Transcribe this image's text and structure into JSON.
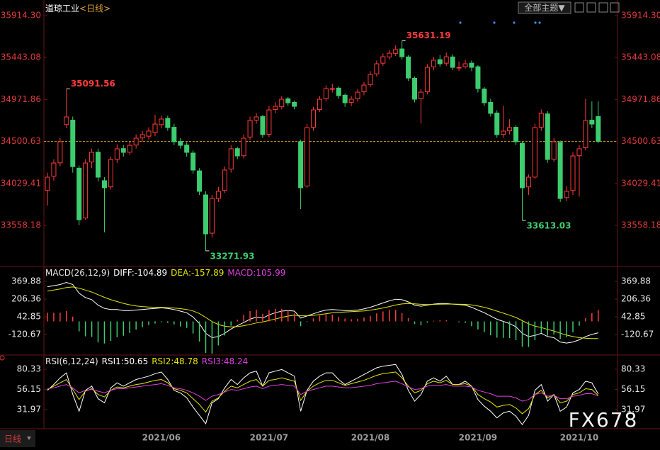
{
  "ui": {
    "toolbar": "全部主题▼",
    "tab": "日线",
    "watermark": "FX678"
  },
  "chart_data": [
    {
      "type": "candlestick",
      "title": "道琼工业",
      "subtitle": "<日线>",
      "up_color": "#ff3b3b",
      "down_color": "#3dcc6e",
      "last_line_color": "#d4a017",
      "ylim": [
        33104,
        36026
      ],
      "yticks": [
        {
          "value": 35914.3,
          "label": "35914.30"
        },
        35443.08,
        34971.86,
        34500.63,
        34029.41,
        33558.18
      ],
      "categories": [
        null,
        null,
        null,
        null,
        null,
        null,
        null,
        null,
        null,
        null,
        null,
        null,
        null,
        null,
        null,
        null,
        null,
        null,
        "2021/06",
        null,
        null,
        null,
        null,
        null,
        null,
        null,
        null,
        null,
        null,
        null,
        null,
        null,
        null,
        null,
        null,
        "2021/07",
        null,
        null,
        null,
        null,
        null,
        null,
        null,
        null,
        null,
        null,
        null,
        null,
        null,
        null,
        null,
        "2021/08",
        null,
        null,
        null,
        null,
        null,
        null,
        null,
        null,
        null,
        null,
        null,
        null,
        null,
        null,
        null,
        null,
        "2021/09",
        null,
        null,
        null,
        null,
        null,
        null,
        null,
        null,
        null,
        null,
        null,
        null,
        null,
        null,
        null,
        "2021/10",
        null,
        null,
        null
      ],
      "candles": [
        [
          33950,
          34150,
          33781,
          34099
        ],
        [
          34110,
          34300,
          34060,
          34258
        ],
        [
          34260,
          34540,
          34220,
          34497
        ],
        [
          34690,
          35091.56,
          34650,
          34776
        ],
        [
          34740,
          34780,
          34150,
          34218
        ],
        [
          34200,
          34230,
          33560,
          33621
        ],
        [
          33640,
          34300,
          33620,
          34258
        ],
        [
          34270,
          34420,
          34200,
          34378
        ],
        [
          34380,
          34420,
          34050,
          34099
        ],
        [
          34060,
          34100,
          33480,
          33980
        ],
        [
          33990,
          34330,
          33960,
          34298
        ],
        [
          34300,
          34470,
          34260,
          34418
        ],
        [
          34420,
          34460,
          34330,
          34378
        ],
        [
          34380,
          34500,
          34350,
          34457
        ],
        [
          34460,
          34580,
          34420,
          34537
        ],
        [
          34540,
          34620,
          34500,
          34577
        ],
        [
          34560,
          34660,
          34520,
          34617
        ],
        [
          34600,
          34800,
          34560,
          34696
        ],
        [
          34690,
          34790,
          34650,
          34752
        ],
        [
          34760,
          34790,
          34620,
          34656
        ],
        [
          34660,
          34700,
          34460,
          34497
        ],
        [
          34500,
          34540,
          34420,
          34457
        ],
        [
          34460,
          34490,
          34330,
          34378
        ],
        [
          34370,
          34400,
          34140,
          34179
        ],
        [
          34170,
          34200,
          33900,
          33940
        ],
        [
          33900,
          33940,
          33271.93,
          33462
        ],
        [
          33470,
          33900,
          33420,
          33860
        ],
        [
          33860,
          33990,
          33820,
          33940
        ],
        [
          33950,
          34220,
          33920,
          34179
        ],
        [
          34190,
          34460,
          34150,
          34418
        ],
        [
          34420,
          34440,
          34300,
          34338
        ],
        [
          34340,
          34580,
          34310,
          34537
        ],
        [
          34550,
          34780,
          34520,
          34736
        ],
        [
          34740,
          34820,
          34700,
          34776
        ],
        [
          34780,
          34800,
          34540,
          34577
        ],
        [
          34580,
          34900,
          34550,
          34855
        ],
        [
          34860,
          34940,
          34820,
          34895
        ],
        [
          34890,
          35010,
          34860,
          34975
        ],
        [
          34980,
          35000,
          34900,
          34935
        ],
        [
          34940,
          34960,
          34860,
          34895
        ],
        [
          34497,
          34520,
          33740,
          33980
        ],
        [
          34000,
          34700,
          33980,
          34656
        ],
        [
          34660,
          34890,
          34620,
          34855
        ],
        [
          34860,
          35010,
          34830,
          34975
        ],
        [
          34980,
          35130,
          34950,
          35094
        ],
        [
          35090,
          35150,
          35050,
          35094
        ],
        [
          35100,
          35120,
          34980,
          35015
        ],
        [
          35020,
          35040,
          34890,
          34935
        ],
        [
          34940,
          35010,
          34900,
          34975
        ],
        [
          34980,
          35090,
          34950,
          35054
        ],
        [
          35060,
          35170,
          35020,
          35134
        ],
        [
          35140,
          35290,
          35110,
          35253
        ],
        [
          35260,
          35410,
          35230,
          35373
        ],
        [
          35380,
          35490,
          35350,
          35452
        ],
        [
          35450,
          35530,
          35420,
          35492
        ],
        [
          35490,
          35580,
          35460,
          35532
        ],
        [
          35540,
          35631.19,
          35420,
          35452
        ],
        [
          35450,
          35470,
          35180,
          35213
        ],
        [
          35210,
          35230,
          34940,
          34975
        ],
        [
          34980,
          35090,
          34700,
          35054
        ],
        [
          35060,
          35370,
          35030,
          35333
        ],
        [
          35340,
          35450,
          35300,
          35413
        ],
        [
          35420,
          35470,
          35340,
          35373
        ],
        [
          35380,
          35500,
          35350,
          35452
        ],
        [
          35450,
          35480,
          35300,
          35333
        ],
        [
          35330,
          35400,
          35290,
          35333
        ],
        [
          35340,
          35420,
          35320,
          35373
        ],
        [
          35380,
          35410,
          35290,
          35333
        ],
        [
          35340,
          35360,
          35050,
          35094
        ],
        [
          35090,
          35110,
          34900,
          34935
        ],
        [
          34940,
          34980,
          34780,
          34816
        ],
        [
          34820,
          34850,
          34540,
          34577
        ],
        [
          34580,
          34900,
          34540,
          34617
        ],
        [
          34620,
          34750,
          34580,
          34656
        ],
        [
          34660,
          34680,
          34460,
          34497
        ],
        [
          34480,
          34500,
          33613.03,
          33980
        ],
        [
          33990,
          34130,
          33900,
          34099
        ],
        [
          34100,
          34700,
          34080,
          34656
        ],
        [
          34660,
          34860,
          34620,
          34816
        ],
        [
          34810,
          34840,
          34260,
          34298
        ],
        [
          34300,
          34540,
          34270,
          34497
        ],
        [
          34490,
          34510,
          33820,
          33860
        ],
        [
          33870,
          34000,
          33830,
          33940
        ],
        [
          33950,
          34380,
          33900,
          34338
        ],
        [
          34340,
          34460,
          33880,
          34418
        ],
        [
          34430,
          34980,
          34400,
          34736
        ],
        [
          34740,
          34950,
          34650,
          34696
        ],
        [
          34780,
          34950,
          34480,
          34500.63
        ]
      ]
    },
    {
      "type": "combo",
      "title": "MACD(26,12,9)",
      "ylim": [
        -304,
        494
      ],
      "yticks": [
        369.88,
        206.36,
        42.85,
        -120.67
      ],
      "up_color": "#ff3b3b",
      "down_color": "#3dcc6e",
      "series": [
        {
          "name": "DIFF:",
          "kind": "line",
          "color": "#ffffff",
          "values": [
            320,
            330,
            340,
            360,
            340,
            260,
            220,
            200,
            150,
            120,
            110,
            110,
            100,
            100,
            105,
            110,
            115,
            120,
            125,
            120,
            110,
            95,
            80,
            40,
            -20,
            -110,
            -150,
            -140,
            -110,
            -70,
            -40,
            -10,
            20,
            40,
            30,
            60,
            80,
            95,
            100,
            95,
            30,
            50,
            70,
            90,
            105,
            110,
            105,
            100,
            100,
            105,
            115,
            130,
            150,
            170,
            190,
            205,
            200,
            180,
            150,
            140,
            150,
            160,
            165,
            165,
            160,
            155,
            150,
            130,
            105,
            80,
            50,
            20,
            0,
            -20,
            -50,
            -110,
            -140,
            -130,
            -110,
            -140,
            -150,
            -190,
            -200,
            -190,
            -170,
            -140,
            -120,
            -104.89
          ]
        },
        {
          "name": "DEA:",
          "kind": "line",
          "color": "#e6e600",
          "values": [
            280,
            290,
            300,
            312,
            318,
            306,
            289,
            271,
            247,
            222,
            200,
            183,
            166,
            153,
            143,
            137,
            132,
            130,
            129,
            127,
            124,
            118,
            110,
            96,
            73,
            36,
            -1,
            -29,
            -45,
            -50,
            -48,
            -40,
            -28,
            -14,
            -5,
            8,
            22,
            37,
            49,
            58,
            52,
            52,
            56,
            63,
            71,
            79,
            84,
            87,
            90,
            93,
            97,
            104,
            113,
            124,
            137,
            151,
            161,
            165,
            162,
            158,
            156,
            157,
            159,
            160,
            160,
            159,
            157,
            152,
            142,
            130,
            114,
            95,
            76,
            57,
            36,
            7,
            -22,
            -44,
            -57,
            -74,
            -89,
            -109,
            -127,
            -140,
            -150,
            -155,
            -158,
            -157.89
          ]
        },
        {
          "name": "MACD:",
          "kind": "bar",
          "color": "#e040e0",
          "values": [
            80,
            80,
            80,
            96,
            44,
            -92,
            -138,
            -142,
            -194,
            -204,
            -180,
            -146,
            -132,
            -106,
            -76,
            -54,
            -34,
            -20,
            -8,
            -14,
            -28,
            -46,
            -60,
            -112,
            -186,
            -292,
            -298,
            -222,
            -130,
            -40,
            16,
            60,
            96,
            108,
            70,
            104,
            116,
            116,
            102,
            74,
            -44,
            -4,
            28,
            54,
            68,
            62,
            42,
            26,
            20,
            24,
            36,
            52,
            74,
            92,
            106,
            108,
            78,
            30,
            -24,
            -36,
            -12,
            6,
            12,
            10,
            0,
            -8,
            -14,
            -44,
            -74,
            -100,
            -128,
            -150,
            -152,
            -154,
            -172,
            -234,
            -236,
            -172,
            -106,
            -132,
            -122,
            -162,
            -146,
            -100,
            -40,
            30,
            76,
            105.99
          ]
        }
      ]
    },
    {
      "type": "line",
      "title": "RSI(6,12,24)",
      "ylim": [
        9,
        95.6
      ],
      "yticks": [
        80.33,
        56.15,
        31.97
      ],
      "series": [
        {
          "name": "RSI1:",
          "color": "#ffffff",
          "values": [
            55,
            62,
            70,
            76,
            50,
            30,
            55,
            60,
            45,
            40,
            58,
            64,
            60,
            64,
            68,
            70,
            72,
            75,
            77,
            68,
            55,
            52,
            46,
            35,
            25,
            15,
            40,
            45,
            58,
            68,
            62,
            70,
            76,
            78,
            60,
            76,
            78,
            80,
            76,
            72,
            30,
            55,
            66,
            72,
            76,
            76,
            68,
            62,
            66,
            70,
            74,
            78,
            82,
            84,
            85,
            86,
            74,
            55,
            42,
            50,
            66,
            70,
            66,
            72,
            62,
            62,
            66,
            60,
            44,
            36,
            30,
            22,
            28,
            30,
            24,
            14,
            25,
            55,
            62,
            42,
            50,
            30,
            35,
            52,
            56,
            66,
            64,
            50.65
          ]
        },
        {
          "name": "RSI2:",
          "color": "#e6e600",
          "values": [
            56,
            60,
            64,
            68,
            56,
            44,
            54,
            57,
            50,
            47,
            55,
            59,
            58,
            60,
            62,
            63,
            65,
            67,
            68,
            64,
            57,
            55,
            52,
            45,
            38,
            29,
            42,
            46,
            54,
            60,
            58,
            62,
            66,
            68,
            60,
            67,
            68,
            70,
            68,
            66,
            43,
            54,
            60,
            64,
            67,
            67,
            64,
            61,
            63,
            65,
            67,
            70,
            73,
            75,
            76,
            77,
            70,
            60,
            52,
            55,
            63,
            66,
            64,
            67,
            62,
            62,
            63,
            60,
            50,
            45,
            41,
            35,
            37,
            38,
            34,
            27,
            33,
            50,
            55,
            46,
            50,
            40,
            42,
            50,
            52,
            57,
            56,
            48.78
          ]
        },
        {
          "name": "RSI3:",
          "color": "#e040e0",
          "values": [
            57,
            58,
            60,
            62,
            58,
            52,
            55,
            56,
            54,
            52,
            55,
            57,
            57,
            58,
            59,
            60,
            61,
            62,
            63,
            61,
            58,
            57,
            55,
            52,
            48,
            43,
            48,
            50,
            53,
            56,
            55,
            57,
            59,
            60,
            57,
            60,
            61,
            62,
            61,
            60,
            50,
            54,
            56,
            58,
            60,
            60,
            59,
            58,
            58,
            59,
            60,
            61,
            63,
            64,
            65,
            66,
            63,
            59,
            56,
            57,
            60,
            61,
            61,
            62,
            60,
            60,
            60,
            59,
            55,
            53,
            51,
            48,
            48,
            48,
            46,
            42,
            44,
            50,
            52,
            48,
            49,
            45,
            45,
            48,
            49,
            51,
            51,
            48.24
          ]
        }
      ]
    }
  ]
}
